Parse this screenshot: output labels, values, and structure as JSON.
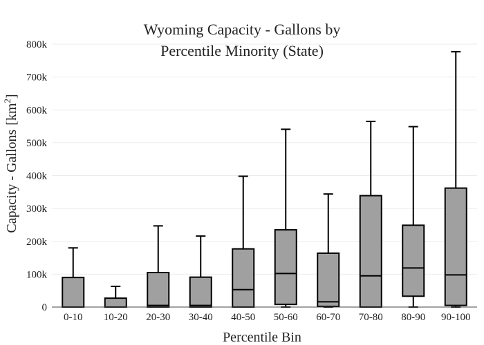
{
  "chart_data": {
    "type": "box",
    "title_lines": [
      "Wyoming Capacity - Gallons by",
      "Percentile Minority (State)"
    ],
    "xlabel": "Percentile Bin",
    "ylabel": "Capacity - Gallons",
    "ylabel_unit_base": "[km",
    "ylabel_unit_sup": "2",
    "ylabel_unit_close": "]",
    "ylim": [
      0,
      800000
    ],
    "yticks": [
      0,
      100000,
      200000,
      300000,
      400000,
      500000,
      600000,
      700000,
      800000
    ],
    "ytick_labels": [
      "0",
      "100k",
      "200k",
      "300k",
      "400k",
      "500k",
      "600k",
      "700k",
      "800k"
    ],
    "grid": true,
    "box_fill": "#a0a0a0",
    "line_color": "#000000",
    "categories": [
      "0-10",
      "10-20",
      "20-30",
      "30-40",
      "40-50",
      "50-60",
      "60-70",
      "70-80",
      "80-90",
      "90-100"
    ],
    "boxes": [
      {
        "min": 0,
        "q1": 0,
        "median": 0,
        "q3": 90000,
        "max": 180000
      },
      {
        "min": 0,
        "q1": 0,
        "median": 0,
        "q3": 27000,
        "max": 63000
      },
      {
        "min": 0,
        "q1": 0,
        "median": 5000,
        "q3": 105000,
        "max": 247000
      },
      {
        "min": 0,
        "q1": 0,
        "median": 5000,
        "q3": 91000,
        "max": 216000
      },
      {
        "min": 0,
        "q1": 0,
        "median": 53000,
        "q3": 177000,
        "max": 398000
      },
      {
        "min": 0,
        "q1": 8000,
        "median": 102000,
        "q3": 235000,
        "max": 541000
      },
      {
        "min": 0,
        "q1": 2000,
        "median": 16000,
        "q3": 164000,
        "max": 344000
      },
      {
        "min": 0,
        "q1": 0,
        "median": 95000,
        "q3": 339000,
        "max": 565000
      },
      {
        "min": 0,
        "q1": 33000,
        "median": 119000,
        "q3": 249000,
        "max": 549000
      },
      {
        "min": 0,
        "q1": 5000,
        "median": 98000,
        "q3": 362000,
        "max": 777000
      }
    ]
  }
}
